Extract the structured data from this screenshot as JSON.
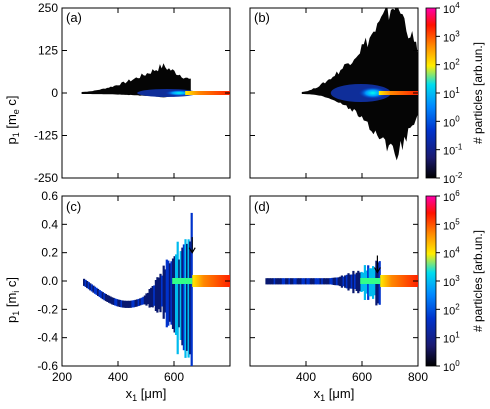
{
  "chart_data": [
    {
      "type": "heatmap",
      "panel_label": "(a)",
      "ylabel": "p₁ [mₑ c]",
      "ylabel_main": "p",
      "ylabel_sub": "1",
      "ylabel_unit": "[m",
      "ylabel_unit_sub": "e",
      "ylabel_end": " c]",
      "xlim": [
        200,
        800
      ],
      "ylim": [
        -250,
        250
      ],
      "yticks": [
        "250",
        "125",
        "0",
        "-125",
        "-250"
      ],
      "plume": {
        "start": 270,
        "peak": 560,
        "end": 660,
        "top": 80,
        "bottom": -12
      },
      "beam_start": 640
    },
    {
      "type": "heatmap",
      "panel_label": "(b)",
      "xlim": [
        200,
        800
      ],
      "ylim": [
        -250,
        250
      ],
      "plume": {
        "start": 385,
        "peak": 720,
        "end": 800,
        "top": 270,
        "bottom": -190
      },
      "beam_start": 660
    },
    {
      "type": "heatmap",
      "panel_label": "(c)",
      "ylabel_main": "p",
      "ylabel_sub": "1",
      "ylabel_unit": "[m",
      "ylabel_unit_sub": "i",
      "ylabel_end": " c]",
      "xlabel_main": "x",
      "xlabel_sub": "1",
      "xlabel_unit": " [μm]",
      "xlim": [
        200,
        800
      ],
      "ylim": [
        -0.6,
        0.6
      ],
      "yticks": [
        "0.6",
        "0.4",
        "0.2",
        "0.0",
        "-0.2",
        "-0.4",
        "-0.6"
      ],
      "xticks": [
        "200",
        "400",
        "600"
      ],
      "arrow_x": 665,
      "beam_start": 665
    },
    {
      "type": "heatmap",
      "panel_label": "(d)",
      "xlabel_main": "x",
      "xlabel_sub": "1",
      "xlabel_unit": " [μm]",
      "xlim": [
        200,
        800
      ],
      "ylim": [
        -0.6,
        0.6
      ],
      "xticks": [
        "400",
        "600",
        "800"
      ],
      "arrow_x": 655,
      "beam_start": 665
    }
  ],
  "colorbars": [
    {
      "label": "# particles [arb.un.]",
      "ticks": [
        {
          "base": "10",
          "exp": "4"
        },
        {
          "base": "10",
          "exp": "3"
        },
        {
          "base": "10",
          "exp": "2"
        },
        {
          "base": "10",
          "exp": "1"
        },
        {
          "base": "10",
          "exp": "0"
        },
        {
          "base": "10",
          "exp": "-1"
        },
        {
          "base": "10",
          "exp": "-2"
        }
      ]
    },
    {
      "label": "# particles [arb.un.]",
      "ticks": [
        {
          "base": "10",
          "exp": "6"
        },
        {
          "base": "10",
          "exp": "5"
        },
        {
          "base": "10",
          "exp": "4"
        },
        {
          "base": "10",
          "exp": "3"
        },
        {
          "base": "10",
          "exp": "2"
        },
        {
          "base": "10",
          "exp": "1"
        },
        {
          "base": "10",
          "exp": "0"
        }
      ]
    }
  ],
  "colors": {
    "colormap": [
      "#000000",
      "#1a1a70",
      "#0033cc",
      "#0088ff",
      "#00ddee",
      "#ffee00",
      "#ff8800",
      "#ff1100",
      "#ff00aa"
    ]
  }
}
